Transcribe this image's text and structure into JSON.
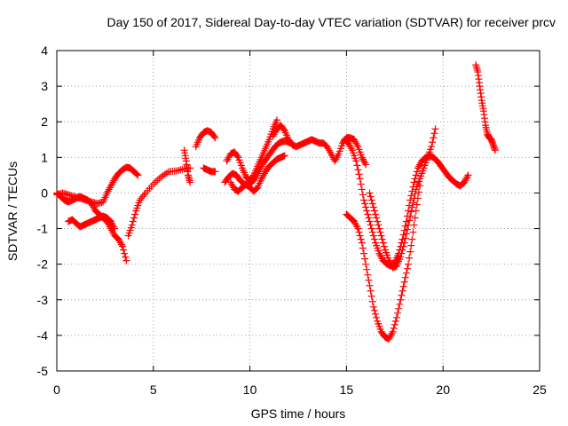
{
  "chart_data": {
    "type": "scatter",
    "title": "Day 150 of 2017, Sidereal Day-to-day VTEC variation (SDTVAR) for receiver prcv",
    "xlabel": "GPS time / hours",
    "ylabel": "SDTVAR / TECUs",
    "xlim": [
      0,
      25
    ],
    "ylim": [
      -5,
      4
    ],
    "xticks": [
      0,
      5,
      10,
      15,
      20,
      25
    ],
    "yticks": [
      -5,
      -4,
      -3,
      -2,
      -1,
      0,
      1,
      2,
      3,
      4
    ],
    "grid": true,
    "marker": "+",
    "color": "#ff0000",
    "series": [
      {
        "name": "track-1",
        "x": [
          0.0,
          0.3,
          0.6,
          0.9,
          1.2,
          1.5,
          1.8,
          2.1,
          2.4,
          2.6,
          2.8,
          3.0,
          3.2,
          3.4,
          3.6,
          3.8,
          4.0,
          4.2
        ],
        "y": [
          -0.05,
          0.0,
          -0.05,
          -0.1,
          -0.15,
          -0.2,
          -0.25,
          -0.3,
          -0.25,
          0.0,
          0.2,
          0.4,
          0.55,
          0.65,
          0.72,
          0.7,
          0.6,
          0.5
        ]
      },
      {
        "name": "track-2",
        "x": [
          0.0,
          0.2,
          0.4,
          0.6,
          0.8,
          1.0,
          1.2,
          1.4,
          1.6,
          1.8,
          2.0,
          2.2,
          2.4,
          2.6,
          2.8,
          3.0,
          3.2,
          3.4,
          3.6
        ],
        "y": [
          0.0,
          -0.1,
          -0.2,
          -0.25,
          -0.2,
          -0.15,
          -0.1,
          -0.15,
          -0.2,
          -0.3,
          -0.5,
          -0.6,
          -0.7,
          -0.8,
          -1.0,
          -1.2,
          -1.3,
          -1.5,
          -1.9
        ]
      },
      {
        "name": "track-3",
        "x": [
          0.6,
          0.8,
          1.0,
          1.2,
          1.4,
          1.6,
          1.8,
          2.0,
          2.2,
          2.4,
          2.6,
          2.8,
          3.0
        ],
        "y": [
          -0.8,
          -0.75,
          -0.85,
          -0.95,
          -0.9,
          -0.85,
          -0.8,
          -0.75,
          -0.7,
          -0.65,
          -0.7,
          -0.8,
          -1.0
        ]
      },
      {
        "name": "track-4",
        "x": [
          3.7,
          3.9,
          4.1,
          4.3,
          4.6,
          5.0,
          5.4,
          5.8,
          6.2,
          6.6,
          6.9
        ],
        "y": [
          -1.2,
          -0.9,
          -0.5,
          -0.2,
          0.0,
          0.25,
          0.45,
          0.6,
          0.62,
          0.68,
          0.7
        ]
      },
      {
        "name": "track-5",
        "x": [
          6.6,
          6.7,
          6.8,
          6.9
        ],
        "y": [
          1.2,
          0.9,
          0.5,
          0.3
        ]
      },
      {
        "name": "track-6",
        "x": [
          7.2,
          7.4,
          7.6,
          7.8,
          8.0,
          8.2
        ],
        "y": [
          1.3,
          1.55,
          1.7,
          1.75,
          1.7,
          1.55
        ]
      },
      {
        "name": "track-7",
        "x": [
          7.6,
          7.8,
          8.0,
          8.2
        ],
        "y": [
          0.7,
          0.65,
          0.6,
          0.6
        ]
      },
      {
        "name": "track-8",
        "x": [
          8.7,
          8.9,
          9.1,
          9.3,
          9.5,
          9.7,
          9.9,
          10.1,
          10.3,
          10.5,
          10.7,
          10.9,
          11.1,
          11.3,
          11.5,
          11.7,
          11.9,
          12.1
        ],
        "y": [
          0.3,
          0.45,
          0.55,
          0.5,
          0.35,
          0.25,
          0.2,
          0.3,
          0.45,
          0.65,
          0.85,
          1.0,
          1.15,
          1.3,
          1.4,
          1.45,
          1.45,
          1.4
        ]
      },
      {
        "name": "track-9",
        "x": [
          8.8,
          9.0,
          9.2,
          9.4,
          9.6,
          9.8,
          10.0,
          10.2,
          10.4,
          10.6,
          10.8,
          11.0,
          11.2,
          11.4
        ],
        "y": [
          0.9,
          1.1,
          1.15,
          1.0,
          0.7,
          0.45,
          0.35,
          0.5,
          0.75,
          1.0,
          1.25,
          1.5,
          1.8,
          2.05
        ]
      },
      {
        "name": "track-10",
        "x": [
          9.0,
          9.2,
          9.4,
          9.6,
          9.8,
          10.0,
          10.2,
          10.4,
          10.6,
          10.8,
          11.0,
          11.2,
          11.4,
          11.6,
          11.8
        ],
        "y": [
          0.3,
          0.1,
          0.05,
          0.15,
          0.25,
          0.15,
          0.05,
          0.15,
          0.4,
          0.6,
          0.75,
          0.85,
          0.95,
          1.0,
          1.05
        ]
      },
      {
        "name": "track-11",
        "x": [
          11.2,
          11.4,
          11.6,
          11.8,
          12.0,
          12.2,
          12.4,
          12.6,
          12.8,
          13.0,
          13.2,
          13.4,
          13.6,
          13.8,
          14.0,
          14.2,
          14.4,
          14.6,
          14.8,
          15.0,
          15.2,
          15.4,
          15.6,
          15.8,
          16.0
        ],
        "y": [
          1.6,
          1.8,
          1.9,
          1.75,
          1.5,
          1.35,
          1.3,
          1.35,
          1.4,
          1.45,
          1.5,
          1.45,
          1.4,
          1.4,
          1.3,
          1.1,
          0.9,
          1.1,
          1.4,
          1.55,
          1.55,
          1.5,
          1.3,
          1.0,
          0.8
        ]
      },
      {
        "name": "track-12",
        "x": [
          14.9,
          15.1,
          15.3,
          15.5,
          15.7,
          15.9,
          16.1,
          16.3,
          16.5,
          16.7,
          16.9,
          17.1,
          17.3,
          17.5,
          17.7,
          17.9,
          18.1,
          18.3,
          18.5,
          18.7,
          18.9,
          19.1,
          19.3,
          19.5,
          19.7,
          19.9,
          20.1,
          20.3,
          20.5,
          20.7,
          20.9,
          21.1,
          21.3
        ],
        "y": [
          1.5,
          1.4,
          1.2,
          0.9,
          0.4,
          -0.2,
          -0.6,
          -1.0,
          -1.4,
          -1.7,
          -1.9,
          -2.0,
          -2.05,
          -1.95,
          -1.7,
          -1.3,
          -0.8,
          -0.2,
          0.3,
          0.7,
          0.9,
          1.0,
          1.05,
          1.0,
          0.9,
          0.75,
          0.6,
          0.45,
          0.35,
          0.25,
          0.2,
          0.3,
          0.5
        ]
      },
      {
        "name": "track-13",
        "x": [
          15.0,
          15.2,
          15.4,
          15.6,
          15.8,
          16.0,
          16.2,
          16.4,
          16.6,
          16.8,
          17.0,
          17.2,
          17.4,
          17.6,
          17.8,
          18.0,
          18.2,
          18.4,
          18.6,
          18.8
        ],
        "y": [
          -0.6,
          -0.7,
          -0.8,
          -1.0,
          -1.4,
          -2.0,
          -2.6,
          -3.2,
          -3.6,
          -3.9,
          -4.05,
          -4.1,
          -3.9,
          -3.5,
          -3.0,
          -2.5,
          -2.0,
          -1.3,
          -0.5,
          0.2
        ]
      },
      {
        "name": "track-14",
        "x": [
          16.2,
          16.4,
          16.6,
          16.8,
          17.0,
          17.2,
          17.4,
          17.6,
          17.8,
          18.0,
          18.2,
          18.4,
          18.6,
          18.8,
          19.0,
          19.2,
          19.4,
          19.6
        ],
        "y": [
          0.0,
          -0.4,
          -0.8,
          -1.2,
          -1.6,
          -1.9,
          -2.1,
          -2.05,
          -1.8,
          -1.4,
          -0.9,
          -0.4,
          0.1,
          0.4,
          0.7,
          1.0,
          1.3,
          1.8
        ]
      },
      {
        "name": "track-15",
        "x": [
          21.7,
          21.8,
          21.9,
          22.0,
          22.1,
          22.2,
          22.3,
          22.4,
          22.5,
          22.6,
          22.7
        ],
        "y": [
          3.6,
          3.4,
          3.0,
          2.6,
          2.3,
          1.9,
          1.65,
          1.55,
          1.5,
          1.35,
          1.2
        ]
      }
    ]
  }
}
